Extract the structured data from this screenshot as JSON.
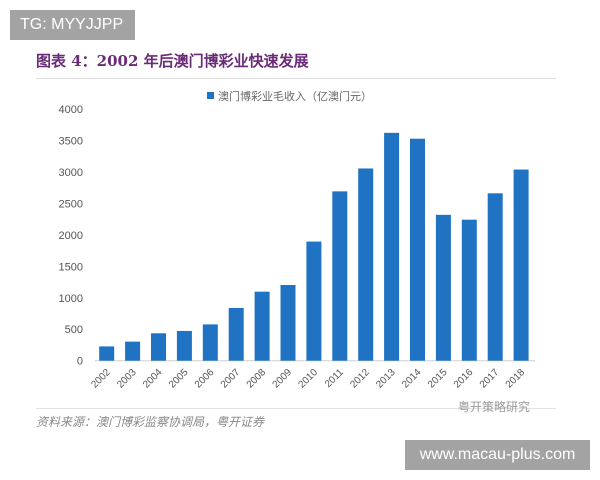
{
  "watermark_top": "TG: MYYJJPP",
  "watermark_bottom": "www.macau-plus.com",
  "figure_title": "图表 4：2002 年后澳门博彩业快速发展",
  "source": "资料来源：澳门博彩监察协调局，粤开证券",
  "brand_watermark": "粤开策略研究",
  "chart_data": {
    "type": "bar",
    "title": "",
    "xlabel": "",
    "ylabel": "",
    "categories": [
      "2002",
      "2003",
      "2004",
      "2005",
      "2006",
      "2007",
      "2008",
      "2009",
      "2010",
      "2011",
      "2012",
      "2013",
      "2014",
      "2015",
      "2016",
      "2017",
      "2018"
    ],
    "series": [
      {
        "name": "澳门博彩业毛收入（亿澳门元）",
        "values": [
          227,
          303,
          436,
          473,
          577,
          838,
          1097,
          1203,
          1893,
          2691,
          3055,
          3621,
          3528,
          2318,
          2241,
          2660,
          3038
        ]
      }
    ],
    "ylim": [
      0,
      4000
    ],
    "yticks": [
      "0",
      "500",
      "1000",
      "1500",
      "2000",
      "2500",
      "3000",
      "3500",
      "4000"
    ],
    "grid": false,
    "legend_position": "top-center",
    "bar_color": "#1f73c2",
    "title_color": "#6a2b78"
  }
}
